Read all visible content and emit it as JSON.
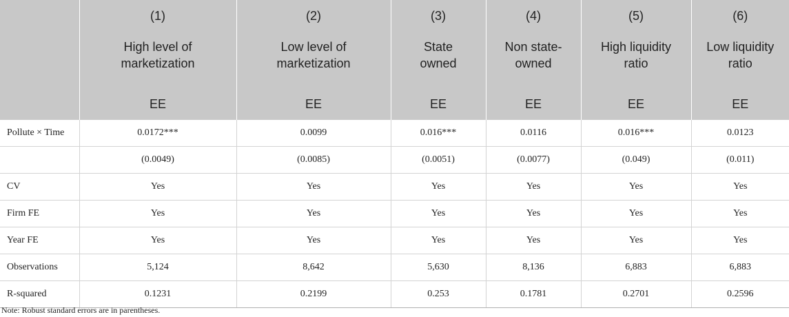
{
  "header": {
    "numbers": [
      "(1)",
      "(2)",
      "(3)",
      "(4)",
      "(5)",
      "(6)"
    ],
    "labels": [
      [
        "High level of",
        "marketization"
      ],
      [
        "Low level of",
        "marketization"
      ],
      [
        "State",
        "owned"
      ],
      [
        "Non state-",
        "owned"
      ],
      [
        "High liquidity",
        "ratio"
      ],
      [
        "Low liquidity",
        "ratio"
      ]
    ],
    "dep_var": [
      "EE",
      "EE",
      "EE",
      "EE",
      "EE",
      "EE"
    ]
  },
  "rows": [
    {
      "label": "Pollute × Time",
      "values": [
        "0.0172***",
        "0.0099",
        "0.016***",
        "0.0116",
        "0.016***",
        "0.0123"
      ]
    },
    {
      "label": "",
      "values": [
        "(0.0049)",
        "(0.0085)",
        "(0.0051)",
        "(0.0077)",
        "(0.049)",
        "(0.011)"
      ]
    },
    {
      "label": "CV",
      "values": [
        "Yes",
        "Yes",
        "Yes",
        "Yes",
        "Yes",
        "Yes"
      ]
    },
    {
      "label": "Firm FE",
      "values": [
        "Yes",
        "Yes",
        "Yes",
        "Yes",
        "Yes",
        "Yes"
      ]
    },
    {
      "label": "Year FE",
      "values": [
        "Yes",
        "Yes",
        "Yes",
        "Yes",
        "Yes",
        "Yes"
      ]
    },
    {
      "label": "Observations",
      "values": [
        "5,124",
        "8,642",
        "5,630",
        "8,136",
        "6,883",
        "6,883"
      ]
    },
    {
      "label": "R-squared",
      "values": [
        "0.1231",
        "0.2199",
        "0.253",
        "0.1781",
        "0.2701",
        "0.2596"
      ]
    }
  ],
  "note": "Note: Robust standard errors are in parentheses."
}
